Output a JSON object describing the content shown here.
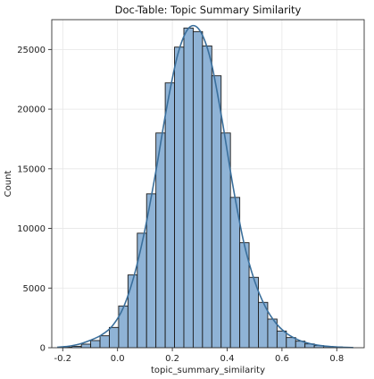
{
  "chart_data": {
    "type": "bar",
    "title": "Doc-Table: Topic Summary Similarity",
    "xlabel": "topic_summary_similarity",
    "ylabel": "Count",
    "xlim": [
      -0.24,
      0.9
    ],
    "ylim": [
      0,
      27500
    ],
    "xticks": [
      -0.2,
      0.0,
      0.2,
      0.4,
      0.6,
      0.8
    ],
    "xtick_labels": [
      "-0.2",
      "0.0",
      "0.2",
      "0.4",
      "0.6",
      "0.8"
    ],
    "yticks": [
      0,
      5000,
      10000,
      15000,
      20000,
      25000
    ],
    "ytick_labels": [
      "0",
      "5000",
      "10000",
      "15000",
      "20000",
      "25000"
    ],
    "grid": true,
    "bar_color": "#8fb3d6",
    "edge_color": "#1b1b1b",
    "kde_color": "#3a6f9c",
    "bins": [
      {
        "x0": -0.2,
        "x1": -0.166,
        "count": 50
      },
      {
        "x0": -0.166,
        "x1": -0.132,
        "count": 120
      },
      {
        "x0": -0.132,
        "x1": -0.098,
        "count": 300
      },
      {
        "x0": -0.098,
        "x1": -0.064,
        "count": 600
      },
      {
        "x0": -0.064,
        "x1": -0.03,
        "count": 1000
      },
      {
        "x0": -0.03,
        "x1": 0.004,
        "count": 1700
      },
      {
        "x0": 0.004,
        "x1": 0.038,
        "count": 3500
      },
      {
        "x0": 0.038,
        "x1": 0.072,
        "count": 6100
      },
      {
        "x0": 0.072,
        "x1": 0.106,
        "count": 9600
      },
      {
        "x0": 0.106,
        "x1": 0.14,
        "count": 12900
      },
      {
        "x0": 0.14,
        "x1": 0.174,
        "count": 18000
      },
      {
        "x0": 0.174,
        "x1": 0.208,
        "count": 22200
      },
      {
        "x0": 0.208,
        "x1": 0.242,
        "count": 25200
      },
      {
        "x0": 0.242,
        "x1": 0.276,
        "count": 26800
      },
      {
        "x0": 0.276,
        "x1": 0.31,
        "count": 26500
      },
      {
        "x0": 0.31,
        "x1": 0.344,
        "count": 25300
      },
      {
        "x0": 0.344,
        "x1": 0.378,
        "count": 22800
      },
      {
        "x0": 0.378,
        "x1": 0.412,
        "count": 18000
      },
      {
        "x0": 0.412,
        "x1": 0.446,
        "count": 12600
      },
      {
        "x0": 0.446,
        "x1": 0.48,
        "count": 8800
      },
      {
        "x0": 0.48,
        "x1": 0.514,
        "count": 5900
      },
      {
        "x0": 0.514,
        "x1": 0.548,
        "count": 3800
      },
      {
        "x0": 0.548,
        "x1": 0.582,
        "count": 2400
      },
      {
        "x0": 0.582,
        "x1": 0.616,
        "count": 1400
      },
      {
        "x0": 0.616,
        "x1": 0.65,
        "count": 850
      },
      {
        "x0": 0.65,
        "x1": 0.684,
        "count": 550
      },
      {
        "x0": 0.684,
        "x1": 0.718,
        "count": 320
      },
      {
        "x0": 0.718,
        "x1": 0.752,
        "count": 180
      },
      {
        "x0": 0.752,
        "x1": 0.786,
        "count": 100
      },
      {
        "x0": 0.786,
        "x1": 0.82,
        "count": 60
      }
    ],
    "kde": {
      "x": [
        -0.22,
        -0.18,
        -0.14,
        -0.1,
        -0.06,
        -0.02,
        0.02,
        0.06,
        0.1,
        0.14,
        0.18,
        0.22,
        0.26,
        0.3,
        0.34,
        0.38,
        0.42,
        0.46,
        0.5,
        0.54,
        0.58,
        0.62,
        0.66,
        0.7,
        0.74,
        0.78,
        0.82,
        0.86
      ],
      "y": [
        40,
        120,
        300,
        620,
        1050,
        1800,
        3300,
        6000,
        9900,
        14800,
        20200,
        24600,
        26800,
        26600,
        24100,
        19300,
        13700,
        8900,
        5600,
        3400,
        2000,
        1150,
        650,
        350,
        180,
        90,
        40,
        15
      ]
    }
  }
}
